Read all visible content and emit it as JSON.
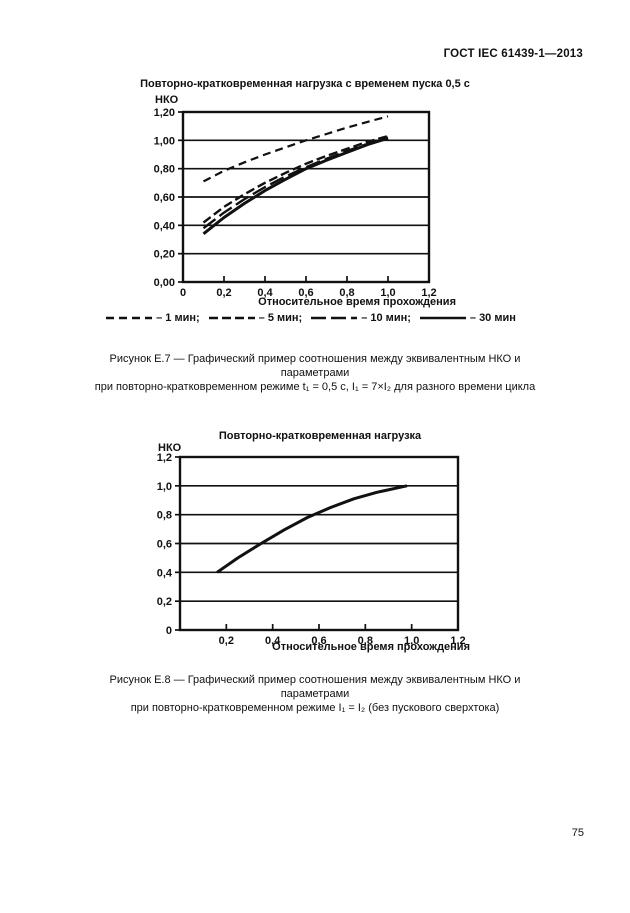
{
  "page": {
    "header": "ГОСТ IEC 61439-1—2013",
    "page_number": "75"
  },
  "figures": {
    "e7": {
      "caption_line1": "Рисунок Е.7 — Графический пример соотношения между эквивалентным НКО и параметрами",
      "caption_line2": "при повторно-кратковременном режиме t₁ = 0,5 с, I₁ = 7×I₂  для разного времени цикла"
    },
    "e8": {
      "caption_line1": "Рисунок Е.8 — Графический пример соотношения между эквивалентным НКО и параметрами",
      "caption_line2": "при повторно-кратковременном режиме I₁ = I₂  (без пускового сверхтока)"
    }
  },
  "chart_data": [
    {
      "type": "line",
      "title": "Повторно-кратковременная нагрузка с временем пуска 0,5 с",
      "ylabel": "НКО",
      "xlabel": "Относительное время прохождения",
      "xlim": [
        0,
        1.2
      ],
      "ylim": [
        0,
        1.2
      ],
      "grid": "horizontal",
      "legend_position": "bottom",
      "xticks": {
        "values": [
          0,
          0.2,
          0.4,
          0.6,
          0.8,
          1.0,
          1.2
        ],
        "labels": [
          "0",
          "0,2",
          "0,4",
          "0,6",
          "0,8",
          "1,0",
          "1,2"
        ]
      },
      "yticks": {
        "values": [
          0,
          0.2,
          0.4,
          0.6,
          0.8,
          1.0,
          1.2
        ],
        "labels": [
          "0,00",
          "0,20",
          "0,40",
          "0,60",
          "0,80",
          "1,00",
          "1,20"
        ]
      },
      "series": [
        {
          "name": "1 мин",
          "label": "– 1 мин;",
          "dash": "8 5",
          "width": 2.2,
          "x": [
            0.1,
            0.2,
            0.3,
            0.4,
            0.5,
            0.6,
            0.7,
            0.8,
            0.9,
            1.0
          ],
          "y": [
            0.71,
            0.785,
            0.845,
            0.9,
            0.95,
            1.0,
            1.045,
            1.09,
            1.13,
            1.17
          ]
        },
        {
          "name": "5 мин",
          "label": "– 5 мин;",
          "dash": "9 4",
          "width": 2.4,
          "x": [
            0.1,
            0.2,
            0.3,
            0.4,
            0.5,
            0.6,
            0.7,
            0.8,
            0.9,
            1.0
          ],
          "y": [
            0.42,
            0.53,
            0.62,
            0.7,
            0.77,
            0.835,
            0.89,
            0.94,
            0.99,
            1.03
          ]
        },
        {
          "name": "10 мин",
          "label": "– 10 мин;",
          "dash": "15 5",
          "width": 2.4,
          "x": [
            0.1,
            0.2,
            0.3,
            0.4,
            0.5,
            0.6,
            0.7,
            0.8,
            0.9,
            1.0
          ],
          "y": [
            0.38,
            0.49,
            0.585,
            0.67,
            0.745,
            0.81,
            0.87,
            0.925,
            0.975,
            1.02
          ]
        },
        {
          "name": "30 мин",
          "label": "– 30 мин",
          "dash": "",
          "width": 3,
          "x": [
            0.1,
            0.2,
            0.3,
            0.4,
            0.5,
            0.6,
            0.7,
            0.8,
            0.9,
            1.0
          ],
          "y": [
            0.34,
            0.455,
            0.555,
            0.645,
            0.725,
            0.8,
            0.86,
            0.915,
            0.97,
            1.015
          ]
        }
      ]
    },
    {
      "type": "line",
      "title": "Повторно-кратковременная нагрузка",
      "ylabel": "НКО",
      "xlabel": "Относительное время прохождения",
      "xlim": [
        0,
        1.2
      ],
      "ylim": [
        0,
        1.2
      ],
      "grid": "horizontal",
      "legend_position": "none",
      "xticks": {
        "values": [
          0.2,
          0.4,
          0.6,
          0.8,
          1.0,
          1.2
        ],
        "labels": [
          "0,2",
          "0,4",
          "0,6",
          "0,8",
          "1,0",
          "1,2"
        ]
      },
      "yticks": {
        "values": [
          0,
          0.2,
          0.4,
          0.6,
          0.8,
          1.0,
          1.2
        ],
        "labels": [
          "0",
          "0,2",
          "0,4",
          "0,6",
          "0,8",
          "1,0",
          "1,2"
        ]
      },
      "series": [
        {
          "name": "НКО",
          "label": "",
          "dash": "",
          "width": 3,
          "x": [
            0.16,
            0.25,
            0.35,
            0.45,
            0.55,
            0.65,
            0.75,
            0.85,
            0.98
          ],
          "y": [
            0.4,
            0.5,
            0.6,
            0.695,
            0.78,
            0.85,
            0.91,
            0.955,
            1.0
          ]
        }
      ]
    }
  ]
}
